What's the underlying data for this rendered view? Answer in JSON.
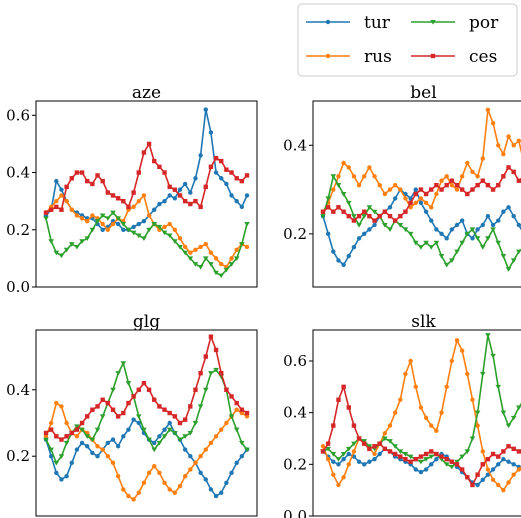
{
  "chart_data": {
    "type": "line",
    "legend": {
      "position": "top-right",
      "entries": [
        {
          "label": "tur",
          "color": "#1f77b4",
          "marker": "circle"
        },
        {
          "label": "por",
          "color": "#2ca02c",
          "marker": "triangle-down"
        },
        {
          "label": "rus",
          "color": "#ff7f0e",
          "marker": "circle"
        },
        {
          "label": "ces",
          "color": "#d62728",
          "marker": "square"
        }
      ]
    },
    "panels": [
      {
        "title": "aze",
        "ylim": [
          0.0,
          0.65
        ],
        "yticks": [
          0.0,
          0.2,
          0.4,
          0.6
        ],
        "ytick_labels": [
          "0.0",
          "0.2",
          "0.4",
          "0.6"
        ],
        "series": [
          {
            "name": "tur",
            "color": "#1f77b4",
            "values": [
              0.25,
              0.27,
              0.37,
              0.34,
              0.3,
              0.27,
              0.26,
              0.25,
              0.24,
              0.24,
              0.22,
              0.2,
              0.21,
              0.23,
              0.22,
              0.2,
              0.2,
              0.21,
              0.22,
              0.23,
              0.25,
              0.27,
              0.29,
              0.3,
              0.32,
              0.31,
              0.34,
              0.36,
              0.33,
              0.38,
              0.46,
              0.62,
              0.54,
              0.4,
              0.38,
              0.36,
              0.32,
              0.3,
              0.28,
              0.32
            ]
          },
          {
            "name": "rus",
            "color": "#ff7f0e",
            "values": [
              0.26,
              0.28,
              0.3,
              0.32,
              0.3,
              0.27,
              0.25,
              0.24,
              0.23,
              0.25,
              0.24,
              0.22,
              0.2,
              0.22,
              0.24,
              0.23,
              0.27,
              0.28,
              0.3,
              0.32,
              0.25,
              0.22,
              0.2,
              0.21,
              0.22,
              0.2,
              0.17,
              0.14,
              0.12,
              0.13,
              0.14,
              0.15,
              0.12,
              0.1,
              0.08,
              0.07,
              0.1,
              0.13,
              0.15,
              0.14
            ]
          },
          {
            "name": "por",
            "color": "#2ca02c",
            "values": [
              0.24,
              0.16,
              0.12,
              0.11,
              0.13,
              0.15,
              0.14,
              0.16,
              0.17,
              0.2,
              0.23,
              0.25,
              0.24,
              0.26,
              0.24,
              0.22,
              0.2,
              0.19,
              0.18,
              0.17,
              0.2,
              0.22,
              0.21,
              0.19,
              0.18,
              0.16,
              0.14,
              0.12,
              0.1,
              0.08,
              0.07,
              0.1,
              0.08,
              0.05,
              0.04,
              0.06,
              0.08,
              0.1,
              0.15,
              0.22
            ]
          },
          {
            "name": "ces",
            "color": "#d62728",
            "values": [
              0.26,
              0.27,
              0.28,
              0.27,
              0.35,
              0.38,
              0.4,
              0.4,
              0.37,
              0.36,
              0.39,
              0.37,
              0.33,
              0.32,
              0.31,
              0.3,
              0.28,
              0.33,
              0.4,
              0.47,
              0.5,
              0.44,
              0.42,
              0.4,
              0.35,
              0.34,
              0.32,
              0.3,
              0.29,
              0.3,
              0.28,
              0.35,
              0.42,
              0.45,
              0.44,
              0.41,
              0.4,
              0.38,
              0.37,
              0.39
            ]
          }
        ]
      },
      {
        "title": "bel",
        "ylim": [
          0.08,
          0.5
        ],
        "yticks": [
          0.2,
          0.4
        ],
        "ytick_labels": [
          "0.2",
          "0.4"
        ],
        "series": [
          {
            "name": "tur",
            "color": "#1f77b4",
            "values": [
              0.24,
              0.2,
              0.16,
              0.14,
              0.13,
              0.15,
              0.17,
              0.19,
              0.2,
              0.21,
              0.22,
              0.24,
              0.25,
              0.26,
              0.28,
              0.3,
              0.29,
              0.28,
              0.3,
              0.27,
              0.25,
              0.23,
              0.21,
              0.2,
              0.19,
              0.21,
              0.22,
              0.23,
              0.2,
              0.19,
              0.21,
              0.22,
              0.24,
              0.22,
              0.23,
              0.25,
              0.26,
              0.24,
              0.22,
              0.2
            ]
          },
          {
            "name": "rus",
            "color": "#ff7f0e",
            "values": [
              0.25,
              0.27,
              0.3,
              0.33,
              0.36,
              0.35,
              0.33,
              0.31,
              0.33,
              0.35,
              0.33,
              0.31,
              0.29,
              0.3,
              0.31,
              0.3,
              0.28,
              0.26,
              0.27,
              0.28,
              0.27,
              0.26,
              0.29,
              0.32,
              0.33,
              0.31,
              0.3,
              0.33,
              0.36,
              0.34,
              0.33,
              0.37,
              0.48,
              0.45,
              0.4,
              0.38,
              0.42,
              0.4,
              0.41,
              0.36
            ]
          },
          {
            "name": "por",
            "color": "#2ca02c",
            "values": [
              0.24,
              0.28,
              0.33,
              0.31,
              0.29,
              0.27,
              0.24,
              0.22,
              0.24,
              0.26,
              0.25,
              0.24,
              0.22,
              0.21,
              0.23,
              0.22,
              0.21,
              0.2,
              0.18,
              0.17,
              0.18,
              0.17,
              0.18,
              0.15,
              0.13,
              0.14,
              0.16,
              0.18,
              0.2,
              0.21,
              0.19,
              0.17,
              0.19,
              0.21,
              0.18,
              0.15,
              0.12,
              0.14,
              0.16,
              0.17
            ]
          },
          {
            "name": "ces",
            "color": "#d62728",
            "values": [
              0.25,
              0.26,
              0.25,
              0.26,
              0.25,
              0.24,
              0.23,
              0.24,
              0.25,
              0.24,
              0.23,
              0.24,
              0.25,
              0.24,
              0.23,
              0.24,
              0.25,
              0.27,
              0.29,
              0.3,
              0.29,
              0.3,
              0.31,
              0.3,
              0.31,
              0.32,
              0.31,
              0.3,
              0.29,
              0.3,
              0.31,
              0.32,
              0.31,
              0.3,
              0.31,
              0.33,
              0.35,
              0.34,
              0.32,
              0.33
            ]
          }
        ]
      },
      {
        "title": "glg",
        "ylim": [
          0.02,
          0.58
        ],
        "yticks": [
          0.2,
          0.4
        ],
        "ytick_labels": [
          "0.2",
          "0.4"
        ],
        "series": [
          {
            "name": "tur",
            "color": "#1f77b4",
            "values": [
              0.25,
              0.2,
              0.15,
              0.13,
              0.14,
              0.18,
              0.22,
              0.24,
              0.23,
              0.21,
              0.2,
              0.22,
              0.24,
              0.25,
              0.23,
              0.26,
              0.28,
              0.31,
              0.3,
              0.27,
              0.25,
              0.24,
              0.26,
              0.28,
              0.3,
              0.27,
              0.25,
              0.22,
              0.2,
              0.18,
              0.15,
              0.13,
              0.1,
              0.08,
              0.09,
              0.12,
              0.15,
              0.18,
              0.2,
              0.22
            ]
          },
          {
            "name": "rus",
            "color": "#ff7f0e",
            "values": [
              0.26,
              0.3,
              0.36,
              0.35,
              0.3,
              0.27,
              0.26,
              0.28,
              0.27,
              0.25,
              0.23,
              0.22,
              0.2,
              0.18,
              0.14,
              0.1,
              0.08,
              0.07,
              0.09,
              0.12,
              0.15,
              0.17,
              0.15,
              0.12,
              0.1,
              0.09,
              0.11,
              0.14,
              0.16,
              0.18,
              0.2,
              0.22,
              0.24,
              0.26,
              0.28,
              0.3,
              0.32,
              0.34,
              0.33,
              0.32
            ]
          },
          {
            "name": "por",
            "color": "#2ca02c",
            "values": [
              0.25,
              0.22,
              0.18,
              0.2,
              0.24,
              0.27,
              0.29,
              0.28,
              0.26,
              0.25,
              0.28,
              0.32,
              0.36,
              0.4,
              0.45,
              0.48,
              0.42,
              0.38,
              0.32,
              0.28,
              0.25,
              0.22,
              0.24,
              0.26,
              0.28,
              0.27,
              0.25,
              0.26,
              0.27,
              0.3,
              0.35,
              0.4,
              0.45,
              0.46,
              0.44,
              0.4,
              0.32,
              0.28,
              0.24,
              0.22
            ]
          },
          {
            "name": "ces",
            "color": "#d62728",
            "values": [
              0.27,
              0.28,
              0.26,
              0.25,
              0.26,
              0.27,
              0.28,
              0.3,
              0.32,
              0.34,
              0.35,
              0.37,
              0.36,
              0.34,
              0.32,
              0.33,
              0.36,
              0.38,
              0.4,
              0.42,
              0.4,
              0.37,
              0.35,
              0.34,
              0.33,
              0.32,
              0.3,
              0.31,
              0.35,
              0.4,
              0.45,
              0.5,
              0.56,
              0.52,
              0.45,
              0.4,
              0.38,
              0.36,
              0.34,
              0.33
            ]
          }
        ]
      },
      {
        "title": "slk",
        "ylim": [
          0.0,
          0.72
        ],
        "yticks": [
          0.0,
          0.2,
          0.4,
          0.6
        ],
        "ytick_labels": [
          "0.0",
          "0.2",
          "0.4",
          "0.6"
        ],
        "series": [
          {
            "name": "tur",
            "color": "#1f77b4",
            "values": [
              0.25,
              0.23,
              0.21,
              0.2,
              0.22,
              0.24,
              0.23,
              0.21,
              0.2,
              0.21,
              0.22,
              0.24,
              0.26,
              0.25,
              0.23,
              0.22,
              0.21,
              0.2,
              0.18,
              0.17,
              0.18,
              0.2,
              0.22,
              0.24,
              0.23,
              0.21,
              0.19,
              0.17,
              0.15,
              0.13,
              0.12,
              0.14,
              0.16,
              0.18,
              0.2,
              0.22,
              0.21,
              0.2,
              0.19,
              0.18
            ]
          },
          {
            "name": "rus",
            "color": "#ff7f0e",
            "values": [
              0.27,
              0.22,
              0.16,
              0.12,
              0.15,
              0.2,
              0.25,
              0.3,
              0.28,
              0.26,
              0.24,
              0.28,
              0.32,
              0.35,
              0.4,
              0.45,
              0.55,
              0.6,
              0.5,
              0.42,
              0.38,
              0.35,
              0.33,
              0.4,
              0.5,
              0.6,
              0.68,
              0.64,
              0.55,
              0.45,
              0.35,
              0.25,
              0.18,
              0.14,
              0.12,
              0.1,
              0.13,
              0.16,
              0.18,
              0.2
            ]
          },
          {
            "name": "por",
            "color": "#2ca02c",
            "values": [
              0.25,
              0.26,
              0.24,
              0.22,
              0.24,
              0.26,
              0.28,
              0.3,
              0.29,
              0.27,
              0.26,
              0.28,
              0.3,
              0.29,
              0.27,
              0.25,
              0.24,
              0.23,
              0.22,
              0.21,
              0.22,
              0.23,
              0.24,
              0.22,
              0.2,
              0.19,
              0.21,
              0.23,
              0.25,
              0.3,
              0.4,
              0.55,
              0.7,
              0.62,
              0.5,
              0.4,
              0.35,
              0.38,
              0.42,
              0.45
            ]
          },
          {
            "name": "ces",
            "color": "#d62728",
            "values": [
              0.25,
              0.28,
              0.35,
              0.45,
              0.5,
              0.42,
              0.35,
              0.3,
              0.28,
              0.26,
              0.27,
              0.28,
              0.26,
              0.25,
              0.24,
              0.23,
              0.22,
              0.21,
              0.22,
              0.23,
              0.24,
              0.25,
              0.24,
              0.23,
              0.22,
              0.21,
              0.2,
              0.18,
              0.15,
              0.12,
              0.16,
              0.2,
              0.22,
              0.24,
              0.23,
              0.25,
              0.27,
              0.26,
              0.25,
              0.24
            ]
          }
        ]
      }
    ]
  }
}
